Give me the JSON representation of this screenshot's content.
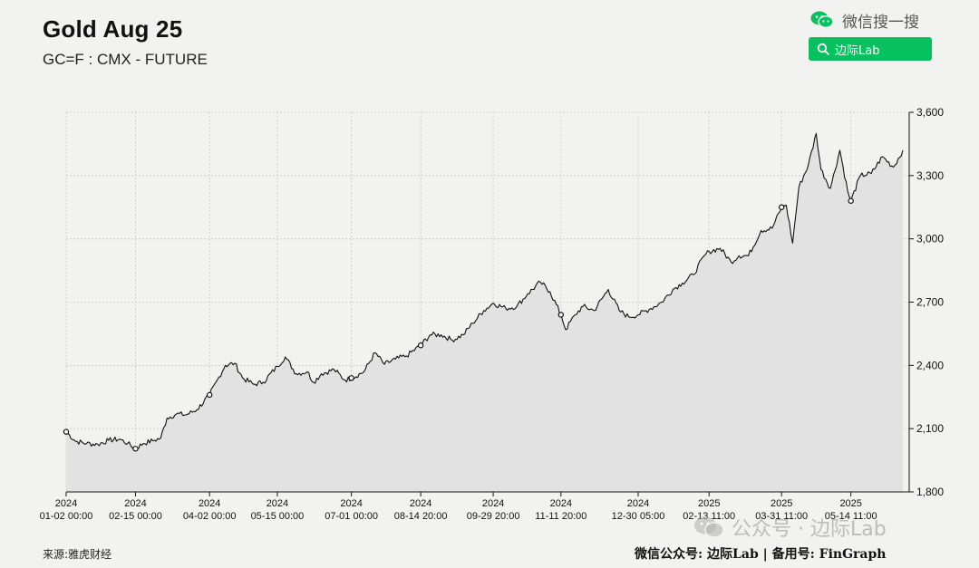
{
  "header": {
    "title": "Gold Aug 25",
    "subtitle": "GC=F : CMX - FUTURE"
  },
  "wechat": {
    "search_label": "微信搜一搜",
    "search_button_label": "边际Lab",
    "accent_color": "#07c160"
  },
  "footer": {
    "source": "来源:雅虎财经",
    "right_text": "微信公众号: 边际Lab | 备用号: FinGraph",
    "watermark": "公众号 · 边际Lab"
  },
  "chart_data": {
    "type": "area",
    "title": "Gold Aug 25",
    "subtitle": "GC=F : CMX - FUTURE",
    "ylim": [
      1800,
      3600
    ],
    "y_ticks": [
      "3,600",
      "3,300",
      "3,000",
      "2,700",
      "2,400",
      "2,100",
      "1,800"
    ],
    "y_tick_values": [
      3600,
      3300,
      3000,
      2700,
      2400,
      2100,
      1800
    ],
    "y_axis_side": "right",
    "x_ticks": [
      {
        "year": "2024",
        "label": "01-02 00:00",
        "date": "2024-01-02"
      },
      {
        "year": "2024",
        "label": "02-15 00:00",
        "date": "2024-02-15"
      },
      {
        "year": "2024",
        "label": "04-02 00:00",
        "date": "2024-04-02"
      },
      {
        "year": "2024",
        "label": "05-15 00:00",
        "date": "2024-05-15"
      },
      {
        "year": "2024",
        "label": "07-01 00:00",
        "date": "2024-07-01"
      },
      {
        "year": "2024",
        "label": "08-14 20:00",
        "date": "2024-08-14"
      },
      {
        "year": "2024",
        "label": "09-29 20:00",
        "date": "2024-09-29"
      },
      {
        "year": "2024",
        "label": "11-11 20:00",
        "date": "2024-11-11"
      },
      {
        "year": "2024",
        "label": "12-30 05:00",
        "date": "2024-12-30"
      },
      {
        "year": "2025",
        "label": "02-13 11:00",
        "date": "2025-02-13"
      },
      {
        "year": "2025",
        "label": "03-31 11:00",
        "date": "2025-03-31"
      },
      {
        "year": "2025",
        "label": "05-14 11:00",
        "date": "2025-05-14"
      }
    ],
    "x_start": "2024-01-02",
    "x_end": "2025-06-20",
    "grid": true,
    "line_color": "#111111",
    "fill_color": "#e2e2e2",
    "series": [
      {
        "points": [
          [
            "2024-01-02",
            2085
          ],
          [
            "2024-01-08",
            2040
          ],
          [
            "2024-01-15",
            2030
          ],
          [
            "2024-01-22",
            2025
          ],
          [
            "2024-01-29",
            2045
          ],
          [
            "2024-02-05",
            2050
          ],
          [
            "2024-02-10",
            2030
          ],
          [
            "2024-02-15",
            2005
          ],
          [
            "2024-02-20",
            2030
          ],
          [
            "2024-02-27",
            2045
          ],
          [
            "2024-03-02",
            2055
          ],
          [
            "2024-03-06",
            2150
          ],
          [
            "2024-03-12",
            2170
          ],
          [
            "2024-03-18",
            2165
          ],
          [
            "2024-03-25",
            2190
          ],
          [
            "2024-04-02",
            2260
          ],
          [
            "2024-04-08",
            2345
          ],
          [
            "2024-04-12",
            2400
          ],
          [
            "2024-04-18",
            2410
          ],
          [
            "2024-04-23",
            2340
          ],
          [
            "2024-04-30",
            2310
          ],
          [
            "2024-05-06",
            2320
          ],
          [
            "2024-05-15",
            2395
          ],
          [
            "2024-05-20",
            2440
          ],
          [
            "2024-05-27",
            2360
          ],
          [
            "2024-06-03",
            2370
          ],
          [
            "2024-06-07",
            2320
          ],
          [
            "2024-06-12",
            2360
          ],
          [
            "2024-06-20",
            2380
          ],
          [
            "2024-06-27",
            2330
          ],
          [
            "2024-07-01",
            2340
          ],
          [
            "2024-07-09",
            2370
          ],
          [
            "2024-07-16",
            2460
          ],
          [
            "2024-07-22",
            2405
          ],
          [
            "2024-07-29",
            2430
          ],
          [
            "2024-08-05",
            2445
          ],
          [
            "2024-08-14",
            2495
          ],
          [
            "2024-08-20",
            2545
          ],
          [
            "2024-08-27",
            2545
          ],
          [
            "2024-09-03",
            2520
          ],
          [
            "2024-09-10",
            2545
          ],
          [
            "2024-09-16",
            2600
          ],
          [
            "2024-09-23",
            2660
          ],
          [
            "2024-09-29",
            2695
          ],
          [
            "2024-10-07",
            2670
          ],
          [
            "2024-10-14",
            2680
          ],
          [
            "2024-10-21",
            2740
          ],
          [
            "2024-10-29",
            2795
          ],
          [
            "2024-11-04",
            2750
          ],
          [
            "2024-11-11",
            2640
          ],
          [
            "2024-11-14",
            2570
          ],
          [
            "2024-11-20",
            2640
          ],
          [
            "2024-11-25",
            2680
          ],
          [
            "2024-12-02",
            2660
          ],
          [
            "2024-12-11",
            2760
          ],
          [
            "2024-12-18",
            2660
          ],
          [
            "2024-12-24",
            2630
          ],
          [
            "2024-12-30",
            2640
          ],
          [
            "2025-01-07",
            2670
          ],
          [
            "2025-01-14",
            2700
          ],
          [
            "2025-01-21",
            2760
          ],
          [
            "2025-01-27",
            2790
          ],
          [
            "2025-02-03",
            2830
          ],
          [
            "2025-02-10",
            2920
          ],
          [
            "2025-02-13",
            2940
          ],
          [
            "2025-02-20",
            2955
          ],
          [
            "2025-02-27",
            2890
          ],
          [
            "2025-03-04",
            2920
          ],
          [
            "2025-03-10",
            2920
          ],
          [
            "2025-03-18",
            3040
          ],
          [
            "2025-03-25",
            3050
          ],
          [
            "2025-03-31",
            3150
          ],
          [
            "2025-04-03",
            3160
          ],
          [
            "2025-04-07",
            2980
          ],
          [
            "2025-04-11",
            3245
          ],
          [
            "2025-04-17",
            3350
          ],
          [
            "2025-04-22",
            3500
          ],
          [
            "2025-04-25",
            3330
          ],
          [
            "2025-05-01",
            3240
          ],
          [
            "2025-05-07",
            3420
          ],
          [
            "2025-05-12",
            3225
          ],
          [
            "2025-05-14",
            3180
          ],
          [
            "2025-05-20",
            3300
          ],
          [
            "2025-05-27",
            3310
          ],
          [
            "2025-06-03",
            3390
          ],
          [
            "2025-06-10",
            3340
          ],
          [
            "2025-06-16",
            3420
          ]
        ]
      }
    ],
    "markers": [
      "2024-01-02",
      "2024-02-15",
      "2024-04-02",
      "2024-07-01",
      "2024-08-14",
      "2024-11-11",
      "2025-03-31",
      "2025-05-14"
    ]
  }
}
